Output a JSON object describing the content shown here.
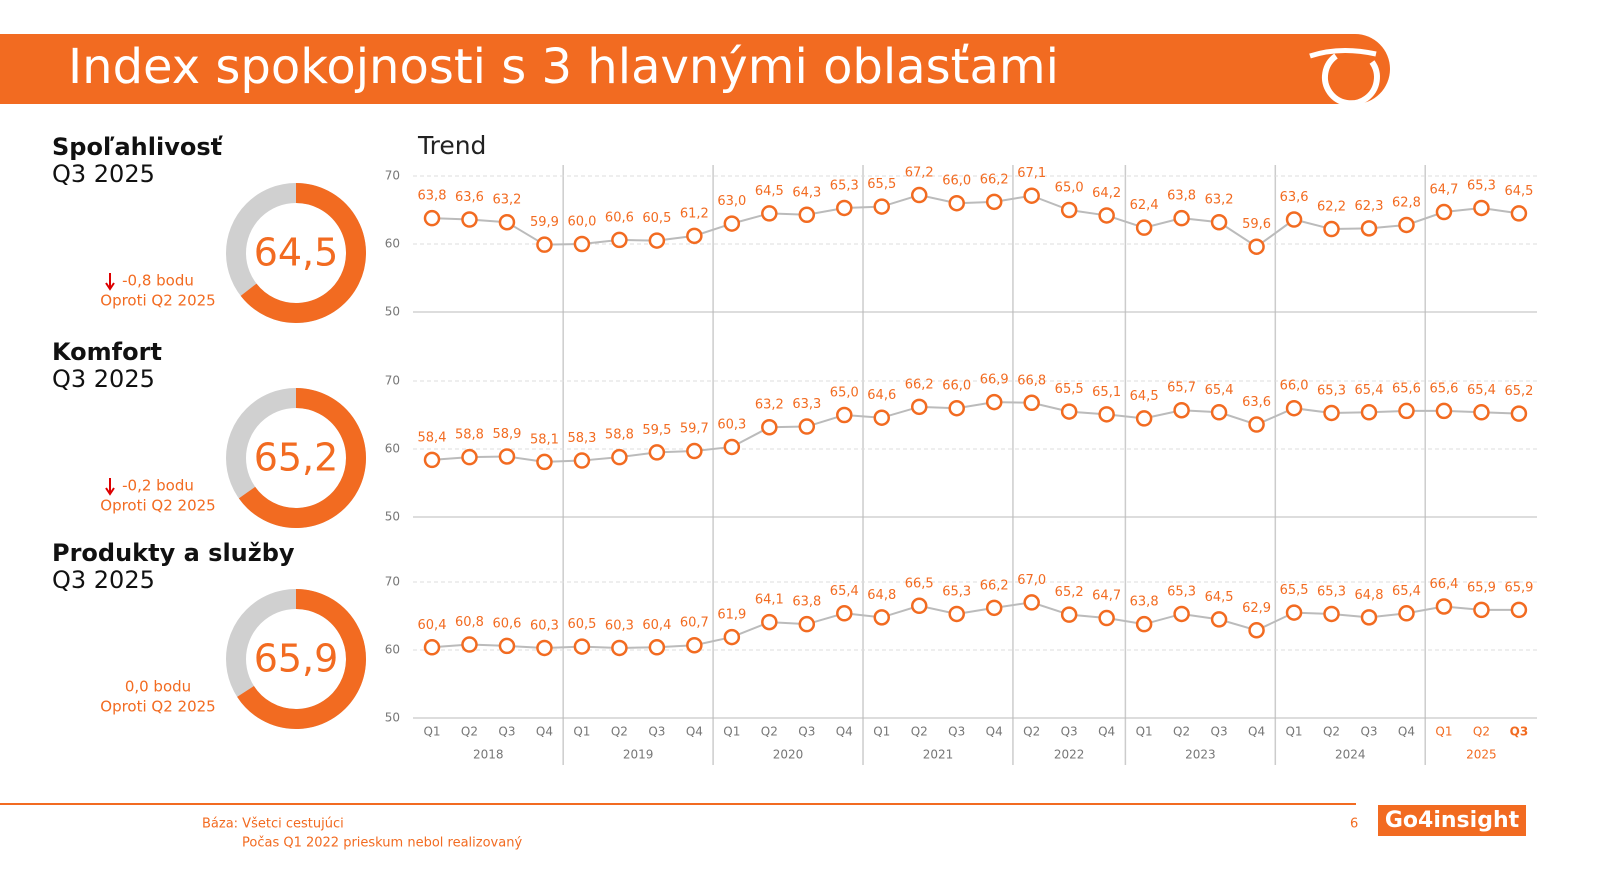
{
  "header": {
    "title": "Index spokojnosti s 3 hlavnými oblasťami"
  },
  "trend_label": "Trend",
  "x_axis": {
    "groups": [
      {
        "label": "2018",
        "categories": [
          "Q1",
          "Q2",
          "Q3",
          "Q4"
        ]
      },
      {
        "label": "2019",
        "categories": [
          "Q1",
          "Q2",
          "Q3",
          "Q4"
        ]
      },
      {
        "label": "2020",
        "categories": [
          "Q1",
          "Q2",
          "Q3",
          "Q4"
        ]
      },
      {
        "label": "2021",
        "categories": [
          "Q1",
          "Q2",
          "Q3",
          "Q4"
        ]
      },
      {
        "label": "2022",
        "categories": [
          "Q2",
          "Q3",
          "Q4"
        ]
      },
      {
        "label": "2023",
        "categories": [
          "Q1",
          "Q2",
          "Q3",
          "Q4"
        ]
      },
      {
        "label": "2024",
        "categories": [
          "Q1",
          "Q2",
          "Q3",
          "Q4"
        ]
      },
      {
        "label": "2025",
        "categories": [
          "Q1",
          "Q2",
          "Q3"
        ]
      }
    ]
  },
  "chart_data": [
    {
      "type": "line",
      "title": "Spoľahlivosť",
      "subtitle": "Q3 2025",
      "score": 64.5,
      "score_label": "64,5",
      "score_lim": [
        0,
        100
      ],
      "change": "-0,8 bodu",
      "change_direction": "down",
      "comparison": "Oproti Q2 2025",
      "color": "#f26b21",
      "values": [
        63.8,
        63.6,
        63.2,
        59.9,
        60.0,
        60.6,
        60.5,
        61.2,
        63.0,
        64.5,
        64.3,
        65.3,
        65.5,
        67.2,
        66.0,
        66.2,
        67.1,
        65.0,
        64.2,
        62.4,
        63.8,
        63.2,
        59.6,
        63.6,
        62.2,
        62.3,
        62.8,
        64.7,
        65.3,
        64.5
      ],
      "value_labels": [
        "63,8",
        "63,6",
        "63,2",
        "59,9",
        "60,0",
        "60,6",
        "60,5",
        "61,2",
        "63,0",
        "64,5",
        "64,3",
        "65,3",
        "65,5",
        "67,2",
        "66,0",
        "66,2",
        "67,1",
        "65,0",
        "64,2",
        "62,4",
        "63,8",
        "63,2",
        "59,6",
        "63,6",
        "62,2",
        "62,3",
        "62,8",
        "64,7",
        "65,3",
        "64,5"
      ],
      "ylim": [
        50,
        70
      ],
      "yticks": [
        50,
        60,
        70
      ],
      "grid": true
    },
    {
      "type": "line",
      "title": "Komfort",
      "subtitle": "Q3 2025",
      "score": 65.2,
      "score_label": "65,2",
      "score_lim": [
        0,
        100
      ],
      "change": "-0,2 bodu",
      "change_direction": "down",
      "comparison": "Oproti Q2 2025",
      "color": "#f26b21",
      "values": [
        58.4,
        58.8,
        58.9,
        58.1,
        58.3,
        58.8,
        59.5,
        59.7,
        60.3,
        63.2,
        63.3,
        65.0,
        64.6,
        66.2,
        66.0,
        66.9,
        66.8,
        65.5,
        65.1,
        64.5,
        65.7,
        65.4,
        63.6,
        66.0,
        65.3,
        65.4,
        65.6,
        65.6,
        65.4,
        65.2
      ],
      "value_labels": [
        "58,4",
        "58,8",
        "58,9",
        "58,1",
        "58,3",
        "58,8",
        "59,5",
        "59,7",
        "60,3",
        "63,2",
        "63,3",
        "65,0",
        "64,6",
        "66,2",
        "66,0",
        "66,9",
        "66,8",
        "65,5",
        "65,1",
        "64,5",
        "65,7",
        "65,4",
        "63,6",
        "66,0",
        "65,3",
        "65,4",
        "65,6",
        "65,6",
        "65,4",
        "65,2"
      ],
      "ylim": [
        50,
        70
      ],
      "yticks": [
        50,
        60,
        70
      ],
      "grid": true
    },
    {
      "type": "line",
      "title": "Produkty a služby",
      "subtitle": "Q3 2025",
      "score": 65.9,
      "score_label": "65,9",
      "score_lim": [
        0,
        100
      ],
      "change": "0,0 bodu",
      "change_direction": "none",
      "comparison": "Oproti Q2 2025",
      "color": "#f26b21",
      "values": [
        60.4,
        60.8,
        60.6,
        60.3,
        60.5,
        60.3,
        60.4,
        60.7,
        61.9,
        64.1,
        63.8,
        65.4,
        64.8,
        66.5,
        65.3,
        66.2,
        67.0,
        65.2,
        64.7,
        63.8,
        65.3,
        64.5,
        62.9,
        65.5,
        65.3,
        64.8,
        65.4,
        66.4,
        65.9,
        65.9
      ],
      "value_labels": [
        "60,4",
        "60,8",
        "60,6",
        "60,3",
        "60,5",
        "60,3",
        "60,4",
        "60,7",
        "61,9",
        "64,1",
        "63,8",
        "65,4",
        "64,8",
        "66,5",
        "65,3",
        "66,2",
        "67,0",
        "65,2",
        "64,7",
        "63,8",
        "65,3",
        "64,5",
        "62,9",
        "65,5",
        "65,3",
        "64,8",
        "65,4",
        "66,4",
        "65,9",
        "65,9"
      ],
      "ylim": [
        50,
        70
      ],
      "yticks": [
        50,
        60,
        70
      ],
      "grid": true
    }
  ],
  "footer": {
    "base": "Báza: Všetci cestujúci",
    "note": "Počas Q1 2022 prieskum nebol realizovaný",
    "page": "6",
    "logo": "Go4insight"
  }
}
